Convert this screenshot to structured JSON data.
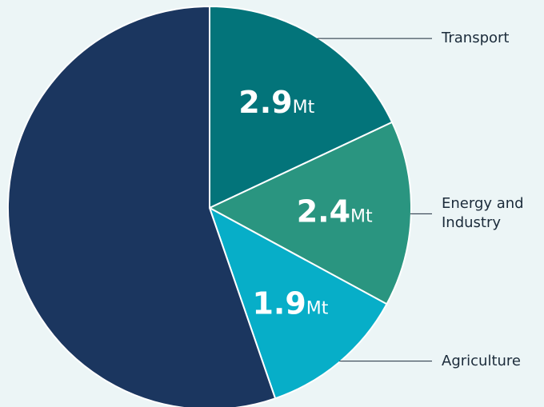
{
  "chart_data": {
    "type": "pie",
    "categories": [
      "Transport",
      "Energy and Industry",
      "Agriculture",
      null
    ],
    "values": [
      2.9,
      2.4,
      1.9,
      8.9
    ],
    "value_labels": [
      "2.9",
      "2.4",
      "1.9",
      null
    ],
    "unit": "Mt",
    "colors": [
      "#03747a",
      "#2a9580",
      "#07aec8",
      "#1b365f"
    ]
  }
}
